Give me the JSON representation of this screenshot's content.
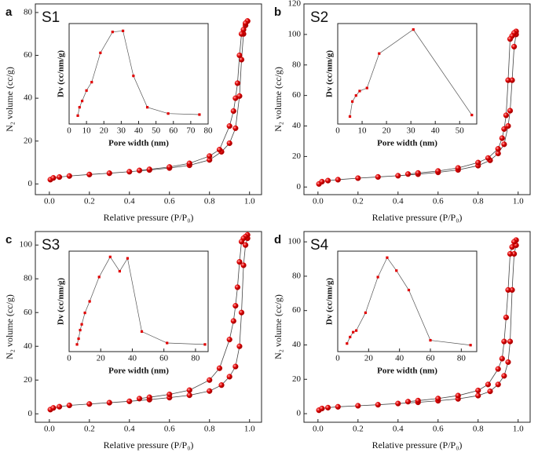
{
  "chart_data": [
    {
      "type": "line",
      "label": "a",
      "title": "S1",
      "xlabel": "Relative pressure (P/P₀)",
      "ylabel": "N₂ volume (cc/g)",
      "xlim": [
        -0.07,
        1.06
      ],
      "xticks": [
        {
          "value": 0,
          "label": "0.0"
        },
        0.2,
        0.4,
        0.6,
        0.8,
        {
          "value": 1,
          "label": "1.0"
        }
      ],
      "ylim": [
        -5,
        84
      ],
      "yticks": [
        0,
        20,
        40,
        60,
        80
      ],
      "line_color": "#444444",
      "series": [
        {
          "color": "#e00000",
          "x": [
            0.005,
            0.02,
            0.05,
            0.1,
            0.2,
            0.3,
            0.4,
            0.5,
            0.6,
            0.7,
            0.8,
            0.86,
            0.9,
            0.93,
            0.95,
            0.96,
            0.97,
            0.98,
            0.99
          ],
          "values": [
            2,
            2.8,
            3.2,
            3.7,
            4.4,
            5,
            5.7,
            6.5,
            7.4,
            8.7,
            11.2,
            15,
            19,
            26,
            41,
            58,
            70,
            74,
            76
          ]
        },
        {
          "color": "#e00000",
          "x": [
            0.99,
            0.98,
            0.97,
            0.96,
            0.95,
            0.94,
            0.93,
            0.92,
            0.9,
            0.85,
            0.8,
            0.7,
            0.6,
            0.5,
            0.45
          ],
          "values": [
            76,
            75,
            72,
            70,
            60,
            47,
            40,
            34,
            27,
            16,
            13,
            9.6,
            7.9,
            6.8,
            6.3
          ]
        }
      ]
    },
    {
      "type": "line",
      "label": "b",
      "title": "S2",
      "xlabel": "Relative pressure (P/P₀)",
      "ylabel": "N₂ volume (cc/g)",
      "xlim": [
        -0.07,
        1.06
      ],
      "xticks": [
        {
          "value": 0,
          "label": "0.0"
        },
        0.2,
        0.4,
        0.6,
        0.8,
        {
          "value": 1,
          "label": "1.0"
        }
      ],
      "ylim": [
        -5,
        120
      ],
      "yticks": [
        0,
        20,
        40,
        60,
        80,
        100,
        120
      ],
      "line_color": "#444444",
      "series": [
        {
          "color": "#e00000",
          "x": [
            0.005,
            0.02,
            0.05,
            0.1,
            0.2,
            0.3,
            0.4,
            0.5,
            0.6,
            0.7,
            0.8,
            0.86,
            0.9,
            0.93,
            0.95,
            0.96,
            0.97,
            0.98,
            0.99
          ],
          "values": [
            2,
            3.5,
            4.2,
            4.8,
            5.8,
            6.6,
            7.4,
            8.4,
            9.6,
            11.2,
            14,
            17.5,
            22,
            28,
            40,
            50,
            70,
            92,
            100
          ]
        },
        {
          "color": "#e00000",
          "x": [
            0.99,
            0.98,
            0.97,
            0.96,
            0.95,
            0.94,
            0.93,
            0.92,
            0.9,
            0.85,
            0.8,
            0.7,
            0.6,
            0.5,
            0.45
          ],
          "values": [
            102,
            101,
            99,
            97,
            70,
            47,
            38,
            32,
            25,
            19,
            16,
            12.5,
            10.5,
            9.2,
            8.5
          ]
        }
      ]
    },
    {
      "type": "line",
      "label": "c",
      "title": "S3",
      "xlabel": "Relative pressure (P/P₀)",
      "ylabel": "N₂ volume (cc/g)",
      "xlim": [
        -0.07,
        1.06
      ],
      "xticks": [
        {
          "value": 0,
          "label": "0.0"
        },
        0.2,
        0.4,
        0.6,
        0.8,
        {
          "value": 1,
          "label": "1.0"
        }
      ],
      "ylim": [
        -5,
        108
      ],
      "yticks": [
        0,
        20,
        40,
        60,
        80,
        100
      ],
      "line_color": "#444444",
      "series": [
        {
          "color": "#e00000",
          "x": [
            0.005,
            0.02,
            0.05,
            0.1,
            0.2,
            0.3,
            0.4,
            0.5,
            0.6,
            0.7,
            0.8,
            0.86,
            0.9,
            0.93,
            0.95,
            0.96,
            0.97,
            0.98,
            0.99
          ],
          "values": [
            2.5,
            3.5,
            4.2,
            5,
            5.8,
            6.6,
            7.4,
            8.4,
            9.6,
            11,
            13.5,
            17,
            22,
            28,
            40,
            60,
            88,
            100,
            104
          ]
        },
        {
          "color": "#e00000",
          "x": [
            0.99,
            0.98,
            0.97,
            0.96,
            0.95,
            0.94,
            0.93,
            0.92,
            0.9,
            0.85,
            0.8,
            0.7,
            0.6,
            0.5,
            0.45
          ],
          "values": [
            106,
            105,
            104,
            102,
            90,
            75,
            64,
            55,
            44,
            27,
            20,
            14,
            11.5,
            9.8,
            9
          ]
        }
      ]
    },
    {
      "type": "line",
      "label": "d",
      "title": "S4",
      "xlabel": "Relative pressure (P/P₀)",
      "ylabel": "N₂ volume (cc/g)",
      "xlim": [
        -0.07,
        1.06
      ],
      "xticks": [
        {
          "value": 0,
          "label": "0.0"
        },
        0.2,
        0.4,
        0.6,
        0.8,
        {
          "value": 1,
          "label": "1.0"
        }
      ],
      "ylim": [
        -5,
        106
      ],
      "yticks": [
        0,
        20,
        40,
        60,
        80,
        100
      ],
      "line_color": "#444444",
      "series": [
        {
          "color": "#e00000",
          "x": [
            0.005,
            0.02,
            0.05,
            0.1,
            0.2,
            0.3,
            0.4,
            0.5,
            0.6,
            0.7,
            0.8,
            0.86,
            0.9,
            0.93,
            0.95,
            0.96,
            0.97,
            0.98,
            0.99
          ],
          "values": [
            2,
            3,
            3.5,
            4,
            4.6,
            5.2,
            5.9,
            6.6,
            7.5,
            8.6,
            10.5,
            13,
            17,
            22,
            30,
            42,
            72,
            93,
            98
          ]
        },
        {
          "color": "#e00000",
          "x": [
            0.99,
            0.98,
            0.97,
            0.96,
            0.95,
            0.94,
            0.93,
            0.92,
            0.9,
            0.85,
            0.8,
            0.7,
            0.6,
            0.5,
            0.45
          ],
          "values": [
            101,
            100,
            97,
            93,
            72,
            56,
            42,
            32,
            26,
            17,
            13.5,
            10.5,
            8.8,
            7.6,
            7
          ]
        }
      ]
    },
    {
      "type": "line",
      "xlabel": "Pore width (nm)",
      "ylabel": "Dv (cc/nm/g)",
      "xlim": [
        0,
        80
      ],
      "xticks": [
        0,
        10,
        20,
        30,
        40,
        50,
        60,
        70,
        80
      ],
      "ylim": [
        26,
        74
      ],
      "line_color": "#555555",
      "series": [
        {
          "color": "#e00000",
          "x": [
            5,
            6,
            7.5,
            10,
            13,
            18,
            25,
            31,
            37,
            45,
            57,
            75
          ],
          "values": [
            30,
            34,
            37,
            42,
            46,
            60,
            70,
            70.5,
            49,
            34,
            31,
            30.5
          ]
        }
      ]
    },
    {
      "type": "line",
      "xlabel": "Pore width (nm)",
      "ylabel": "Dv (cc/nm/g)",
      "xlim": [
        0,
        57
      ],
      "xticks": [
        0,
        10,
        20,
        30,
        40,
        50
      ],
      "ylim": [
        33,
        100
      ],
      "line_color": "#555555",
      "series": [
        {
          "color": "#e00000",
          "x": [
            5,
            6,
            7.5,
            9,
            12,
            17,
            31,
            55
          ],
          "values": [
            38,
            48,
            52,
            55,
            57,
            80,
            96,
            39
          ]
        }
      ]
    },
    {
      "type": "line",
      "xlabel": "Pore width (nm)",
      "ylabel": "Dv (cc/nm/g)",
      "xlim": [
        0,
        88
      ],
      "xticks": [
        0,
        20,
        40,
        60,
        80
      ],
      "ylim": [
        33,
        103
      ],
      "line_color": "#555555",
      "series": [
        {
          "color": "#e00000",
          "x": [
            5,
            6,
            7,
            8,
            10,
            13,
            19,
            26,
            32,
            37,
            46,
            62,
            86
          ],
          "values": [
            38,
            42,
            48,
            52,
            60,
            68,
            85,
            99,
            89,
            98,
            47,
            39,
            38
          ]
        }
      ]
    },
    {
      "type": "line",
      "xlabel": "Pore width (nm)",
      "ylabel": "Dv (cc/nm/g)",
      "xlim": [
        0,
        90
      ],
      "xticks": [
        0,
        20,
        40,
        60,
        80
      ],
      "ylim": [
        30,
        92
      ],
      "line_color": "#555555",
      "series": [
        {
          "color": "#e00000",
          "x": [
            6,
            8,
            10,
            12,
            18,
            26,
            32,
            38,
            46,
            60,
            86
          ],
          "values": [
            35,
            39,
            42,
            43,
            54,
            76,
            88,
            80,
            68,
            37,
            34
          ]
        }
      ]
    }
  ]
}
